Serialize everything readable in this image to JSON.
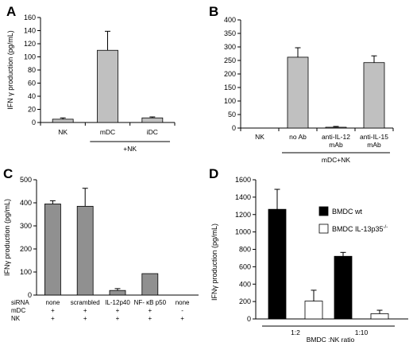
{
  "chart_data": [
    {
      "type": "bar",
      "panel": "A",
      "ylabel": "IFN γ production (pg/mL)",
      "ylim": [
        0,
        160
      ],
      "yticks": [
        0,
        20,
        40,
        60,
        80,
        100,
        120,
        140,
        160
      ],
      "categories": [
        "NK",
        "mDC",
        "iDC"
      ],
      "values": [
        5,
        110,
        7
      ],
      "errors": [
        2,
        29,
        1.5
      ],
      "group_label": "+NK",
      "bar_color": "#c0c0c0"
    },
    {
      "type": "bar",
      "panel": "B",
      "ylim": [
        0,
        400
      ],
      "yticks": [
        0,
        50,
        100,
        150,
        200,
        250,
        300,
        350,
        400
      ],
      "categories": [
        "NK",
        "no Ab",
        "anti-IL-12 mAb",
        "anti-IL-15 mAb"
      ],
      "category_lines": [
        [
          "NK"
        ],
        [
          "no Ab"
        ],
        [
          "anti-IL-12",
          "mAb"
        ],
        [
          "anti-IL-15",
          "mAb"
        ]
      ],
      "values": [
        0,
        262,
        3,
        242
      ],
      "errors": [
        0,
        35,
        3,
        25
      ],
      "group_label": "mDC+NK",
      "bar_color": "#c0c0c0"
    },
    {
      "type": "bar",
      "panel": "C",
      "ylabel": "IFNγ production (pg/mL)",
      "ylim": [
        0,
        500
      ],
      "yticks": [
        0,
        100,
        200,
        300,
        400,
        500
      ],
      "categories": [
        "none",
        "scrambled",
        "IL-12p40",
        "NF- κB p50",
        "none"
      ],
      "values": [
        395,
        385,
        20,
        93,
        0
      ],
      "errors": [
        14,
        78,
        8,
        0,
        0
      ],
      "row_labels": [
        "siRNA",
        "mDC",
        "NK"
      ],
      "mdc_signs": [
        "+",
        "+",
        "+",
        "+",
        "-"
      ],
      "nk_signs": [
        "+",
        "+",
        "+",
        "+",
        "+"
      ],
      "bar_color": "#909090"
    },
    {
      "type": "bar",
      "panel": "D",
      "ylabel": "IFNγ production (pg/mL)",
      "ylim": [
        0,
        1600
      ],
      "yticks": [
        0,
        200,
        400,
        600,
        800,
        1000,
        1200,
        1400,
        1600
      ],
      "xlabel": "BMDC :NK ratio",
      "categories": [
        "1:2",
        "1:10"
      ],
      "series": [
        {
          "name": "BMDC wt",
          "values": [
            1260,
            720
          ],
          "errors": [
            230,
            45
          ],
          "color": "#000000"
        },
        {
          "name": "BMDC IL-13p35",
          "name_sup": "-/-",
          "values": [
            205,
            60
          ],
          "errors": [
            125,
            40
          ],
          "color": "#ffffff"
        }
      ],
      "legend": "top-right"
    }
  ]
}
